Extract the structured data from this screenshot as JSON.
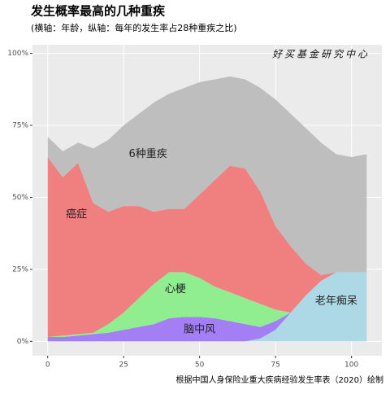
{
  "chart_data": {
    "type": "stacked_area",
    "title": "发生概率最高的几种重疾",
    "subtitle": "(横轴：年龄，纵轴：每年的发生率占28种重疾之比)",
    "watermark": "好买基金研究中心",
    "caption": "根据中国人身保险业重大疾病经验发生率表（2020）绘制",
    "x": [
      0,
      5,
      10,
      15,
      20,
      25,
      30,
      35,
      40,
      45,
      50,
      55,
      60,
      65,
      70,
      75,
      80,
      85,
      90,
      95,
      100,
      105
    ],
    "series": [
      {
        "name": "老年痴呆",
        "color": "#add8e6",
        "values": [
          0,
          0,
          0,
          0,
          0,
          0,
          0,
          0,
          0,
          0,
          0,
          0,
          0,
          0,
          1,
          4,
          10,
          16,
          21,
          24,
          24,
          24
        ]
      },
      {
        "name": "脑中风",
        "color": "#a47ef5",
        "values": [
          1.5,
          1.5,
          2,
          2.5,
          3,
          4,
          5,
          6,
          8,
          8.5,
          8.5,
          8,
          7,
          6,
          4,
          3,
          0,
          0,
          0,
          0,
          0,
          0
        ]
      },
      {
        "name": "心梗",
        "color": "#90ee90",
        "values": [
          0,
          0.5,
          0.5,
          0.5,
          3,
          6,
          10,
          14,
          16,
          15.5,
          13.5,
          11,
          10,
          9,
          8,
          4,
          0,
          0,
          0,
          0,
          0,
          0
        ]
      },
      {
        "name": "癌症",
        "color": "#f08080",
        "values": [
          62.5,
          55,
          59.5,
          45,
          39,
          37,
          32,
          25,
          22,
          22,
          29,
          37,
          44,
          45,
          39,
          29,
          23,
          11,
          2,
          0,
          0,
          0
        ]
      },
      {
        "name": "6种重疾",
        "color": "#bebebe",
        "values": [
          7,
          9,
          7,
          19,
          25,
          28,
          32,
          38,
          40,
          42,
          39,
          35,
          31,
          31,
          36,
          44,
          46,
          47,
          46,
          41,
          40,
          41
        ]
      }
    ],
    "xlim": [
      -5,
      110
    ],
    "ylim": [
      -5,
      103
    ],
    "xticks": [
      0,
      25,
      50,
      75,
      100
    ],
    "yticks": [
      {
        "value": 0,
        "label": "0%"
      },
      {
        "value": 25,
        "label": "25%"
      },
      {
        "value": 50,
        "label": "50%"
      },
      {
        "value": 75,
        "label": "75%"
      },
      {
        "value": 100,
        "label": "100%"
      }
    ],
    "grid": true
  }
}
